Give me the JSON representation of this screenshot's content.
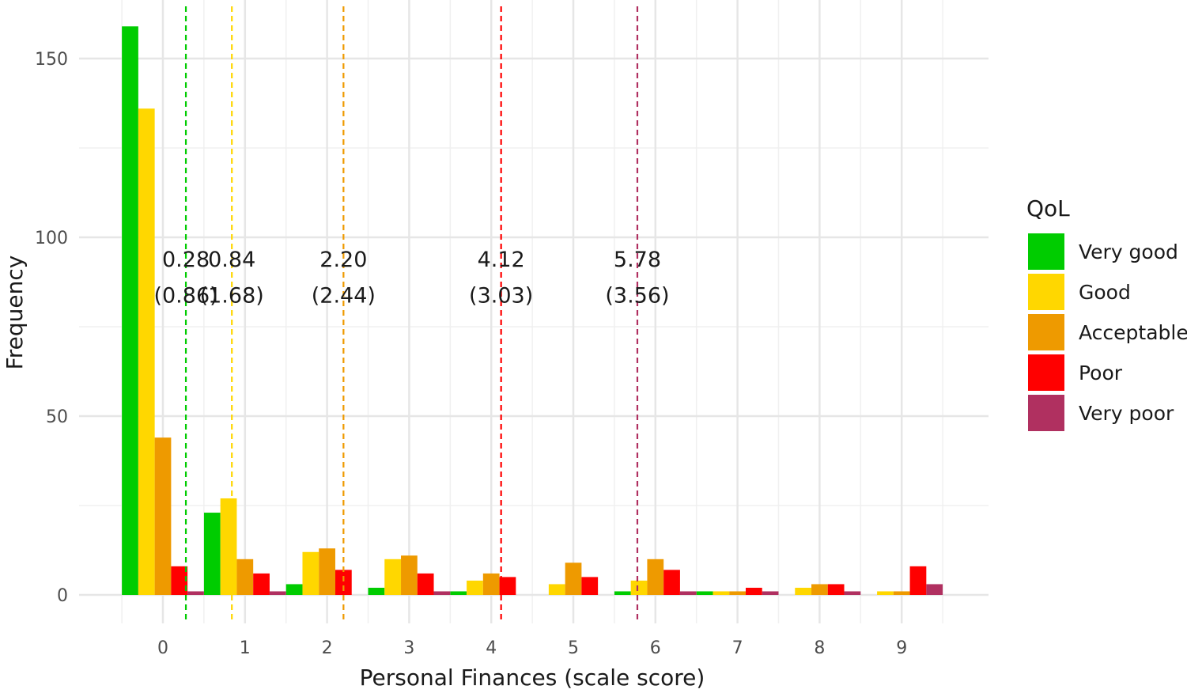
{
  "chart_data": {
    "type": "bar",
    "xlabel": "Personal Finances (scale score)",
    "ylabel": "Frequency",
    "categories": [
      "0",
      "1",
      "2",
      "3",
      "4",
      "5",
      "6",
      "7",
      "8",
      "9"
    ],
    "x_ticks": [
      "0",
      "1",
      "2",
      "3",
      "4",
      "5",
      "6",
      "7",
      "8",
      "9"
    ],
    "y_ticks": [
      "0",
      "50",
      "100",
      "150"
    ],
    "ylim": [
      -8,
      166
    ],
    "grid": true,
    "legend": {
      "title": "QoL",
      "position": "right"
    },
    "series": [
      {
        "name": "Very good",
        "color": "#00CC00",
        "values": [
          159,
          23,
          3,
          2,
          1,
          0,
          1,
          1,
          0,
          0
        ]
      },
      {
        "name": "Good",
        "color": "#FFD700",
        "values": [
          136,
          27,
          12,
          10,
          4,
          3,
          4,
          1,
          2,
          1
        ]
      },
      {
        "name": "Acceptable",
        "color": "#EE9A00",
        "values": [
          44,
          10,
          13,
          11,
          6,
          9,
          10,
          1,
          3,
          1
        ]
      },
      {
        "name": "Poor",
        "color": "#FF0000",
        "values": [
          8,
          6,
          7,
          6,
          5,
          5,
          7,
          2,
          3,
          8
        ]
      },
      {
        "name": "Very poor",
        "color": "#B03060",
        "values": [
          1,
          1,
          0,
          1,
          0,
          0,
          1,
          1,
          1,
          3
        ]
      }
    ],
    "mean_lines": [
      {
        "series": "Very good",
        "x": 0.28,
        "mean_label": "0.28",
        "sd_label": "(0.86)",
        "color": "#00CC00"
      },
      {
        "series": "Good",
        "x": 0.84,
        "mean_label": "0.84",
        "sd_label": "(1.68)",
        "color": "#FFD700"
      },
      {
        "series": "Acceptable",
        "x": 2.2,
        "mean_label": "2.20",
        "sd_label": "(2.44)",
        "color": "#EE9A00"
      },
      {
        "series": "Poor",
        "x": 4.12,
        "mean_label": "4.12",
        "sd_label": "(3.03)",
        "color": "#FF0000"
      },
      {
        "series": "Very poor",
        "x": 5.78,
        "mean_label": "5.78",
        "sd_label": "(3.56)",
        "color": "#B03060"
      }
    ],
    "annotation_y": {
      "mean": 94,
      "sd": 84
    }
  }
}
